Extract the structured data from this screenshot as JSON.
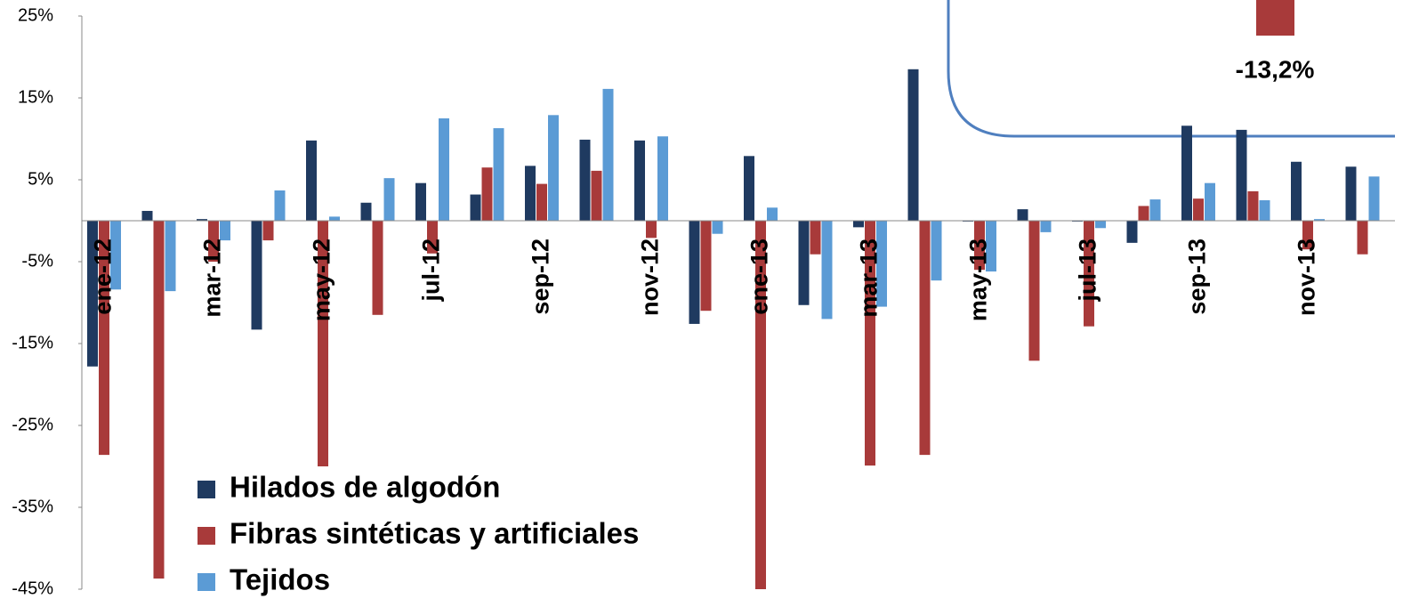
{
  "chart_data": {
    "type": "bar",
    "annotation": "-13,2%",
    "categories": [
      "ene-12",
      null,
      "mar-12",
      null,
      "may-12",
      null,
      "jul-12",
      null,
      "sep-12",
      null,
      "nov-12",
      null,
      "ene-13",
      null,
      "mar-13",
      null,
      "may-13",
      null,
      "jul-13",
      null,
      "sep-13",
      null,
      "nov-13",
      null
    ],
    "series": [
      {
        "name": "Hilados de algodón",
        "color": "#1f3a60",
        "values": [
          -17.8,
          1.2,
          0.2,
          -13.3,
          9.8,
          2.2,
          4.6,
          3.2,
          6.7,
          9.9,
          9.8,
          -12.6,
          7.9,
          -10.3,
          -0.8,
          18.5,
          -0.1,
          1.4,
          -0.1,
          -2.7,
          11.6,
          11.1,
          7.2,
          6.6
        ]
      },
      {
        "name": "Fibras sintéticas y artificiales",
        "color": "#a83a3a",
        "values": [
          -28.6,
          -43.7,
          -5,
          -2.4,
          -30,
          -11.5,
          -4,
          6.5,
          4.5,
          6.1,
          -2.1,
          -11,
          -45,
          -4.1,
          -29.9,
          -28.6,
          -6,
          -17.1,
          -12.9,
          1.8,
          2.7,
          3.6,
          -3.5,
          -4.1
        ]
      },
      {
        "name": "Tejidos",
        "color": "#5b9bd5",
        "values": [
          -8.4,
          -8.6,
          -2.4,
          3.7,
          0.5,
          5.2,
          12.5,
          11.3,
          12.9,
          16.1,
          10.3,
          -1.6,
          1.6,
          -12,
          -10.5,
          -7.3,
          -6.2,
          -1.4,
          -0.9,
          2.6,
          4.6,
          2.5,
          0.2,
          5.4
        ]
      }
    ],
    "ylim": [
      -45,
      25
    ],
    "yticks": [
      {
        "value": 25,
        "label": "25%"
      },
      {
        "value": 15,
        "label": "15%"
      },
      {
        "value": 5,
        "label": "5%"
      },
      {
        "value": -5,
        "label": "-5%"
      },
      {
        "value": -15,
        "label": "-15%"
      },
      {
        "value": -25,
        "label": "-25%"
      },
      {
        "value": -35,
        "label": "-35%"
      },
      {
        "value": -45,
        "label": "-45%"
      }
    ]
  }
}
